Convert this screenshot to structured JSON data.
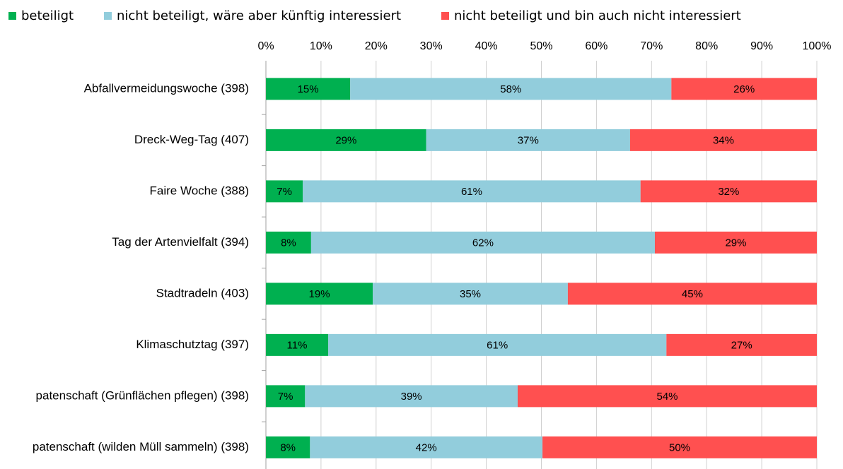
{
  "chart_data": {
    "type": "stacked_bar_horizontal",
    "categories": [
      "Abfallvermeidungswoche (398)",
      "Dreck-Weg-Tag (407)",
      "Faire Woche (388)",
      "Tag der Artenvielfalt (394)",
      "Stadtradeln (403)",
      "Klimaschutztag (397)",
      "patenschaft (Grünflächen pflegen) (398)",
      "patenschaft (wilden Müll sammeln) (398)"
    ],
    "series": [
      {
        "name": "beteiligt",
        "color": "#00b050",
        "values": [
          15.3,
          29.1,
          6.7,
          8.2,
          19.4,
          11.3,
          7.1,
          8.0
        ],
        "value_labels": [
          "15%",
          "29%",
          "7%",
          "8%",
          "19%",
          "11%",
          "7%",
          "8%"
        ]
      },
      {
        "name": "nicht beteiligt, wäre aber künftig interessiert",
        "color": "#92cddc",
        "values": [
          58.3,
          37.0,
          61.3,
          62.4,
          35.4,
          61.4,
          38.6,
          42.2
        ],
        "value_labels": [
          "58%",
          "37%",
          "61%",
          "62%",
          "35%",
          "61%",
          "39%",
          "42%"
        ]
      },
      {
        "name": "nicht beteiligt und bin auch nicht interessiert",
        "color": "#ff5050",
        "values": [
          26.4,
          33.9,
          32.0,
          29.4,
          45.2,
          27.3,
          54.3,
          49.8
        ],
        "value_labels": [
          "26%",
          "34%",
          "32%",
          "29%",
          "45%",
          "27%",
          "54%",
          "50%"
        ]
      }
    ],
    "xlim": [
      0,
      100
    ],
    "xticks": [
      {
        "value": 0,
        "label": "0%"
      },
      {
        "value": 10,
        "label": "10%"
      },
      {
        "value": 20,
        "label": "20%"
      },
      {
        "value": 30,
        "label": "30%"
      },
      {
        "value": 40,
        "label": "40%"
      },
      {
        "value": 50,
        "label": "50%"
      },
      {
        "value": 60,
        "label": "60%"
      },
      {
        "value": 70,
        "label": "70%"
      },
      {
        "value": 80,
        "label": "80%"
      },
      {
        "value": 90,
        "label": "90%"
      },
      {
        "value": 100,
        "label": "100%"
      }
    ],
    "grid": true,
    "legend": "top"
  }
}
